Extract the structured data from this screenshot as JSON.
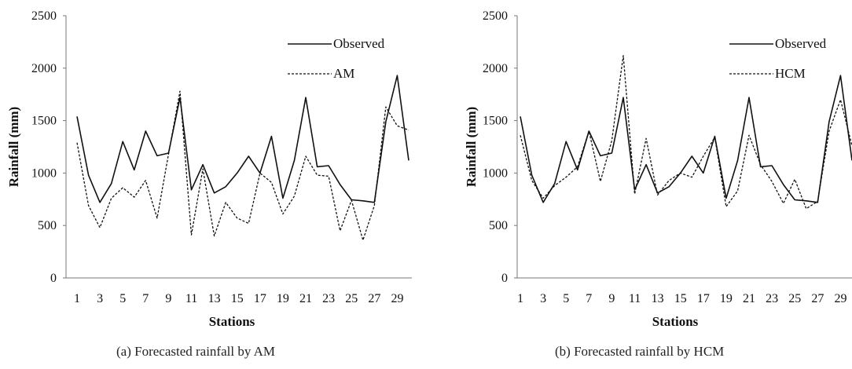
{
  "chart_data": [
    {
      "type": "line",
      "title": "",
      "caption": "(a) Forecasted rainfall by AM",
      "xlabel": "Stations",
      "ylabel": "Rainfall (mm)",
      "ylim": [
        0,
        2500
      ],
      "yticks": [
        0,
        500,
        1000,
        1500,
        2000,
        2500
      ],
      "xlim": [
        1,
        30
      ],
      "xticks": [
        1,
        3,
        5,
        7,
        9,
        11,
        13,
        15,
        17,
        19,
        21,
        23,
        25,
        27,
        29
      ],
      "grid": false,
      "legend": "top-right",
      "x": [
        1,
        2,
        3,
        4,
        5,
        6,
        7,
        8,
        9,
        10,
        11,
        12,
        13,
        14,
        15,
        16,
        17,
        18,
        19,
        20,
        21,
        22,
        23,
        24,
        25,
        26,
        27,
        28,
        29,
        30
      ],
      "series": [
        {
          "name": "Observed",
          "style": "solid",
          "values": [
            1540,
            980,
            720,
            900,
            1300,
            1030,
            1400,
            1165,
            1190,
            1720,
            840,
            1080,
            810,
            870,
            1000,
            1160,
            1000,
            1350,
            760,
            1120,
            1720,
            1060,
            1070,
            890,
            745,
            735,
            720,
            1490,
            1930,
            1120
          ]
        },
        {
          "name": "AM",
          "style": "dashed",
          "values": [
            1290,
            690,
            480,
            760,
            860,
            770,
            930,
            570,
            1180,
            1780,
            410,
            1040,
            400,
            720,
            570,
            520,
            1000,
            910,
            610,
            780,
            1160,
            980,
            970,
            450,
            740,
            360,
            690,
            1630,
            1450,
            1410
          ]
        }
      ]
    },
    {
      "type": "line",
      "title": "",
      "caption": "(b) Forecasted rainfall by HCM",
      "xlabel": "Stations",
      "ylabel": "Rainfall (mm)",
      "ylim": [
        0,
        2500
      ],
      "yticks": [
        0,
        500,
        1000,
        1500,
        2000,
        2500
      ],
      "xlim": [
        1,
        30
      ],
      "xticks": [
        1,
        3,
        5,
        7,
        9,
        11,
        13,
        15,
        17,
        19,
        21,
        23,
        25,
        27,
        29
      ],
      "grid": false,
      "legend": "top-right",
      "x": [
        1,
        2,
        3,
        4,
        5,
        6,
        7,
        8,
        9,
        10,
        11,
        12,
        13,
        14,
        15,
        16,
        17,
        18,
        19,
        20,
        21,
        22,
        23,
        24,
        25,
        26,
        27,
        28,
        29,
        30
      ],
      "series": [
        {
          "name": "Observed",
          "style": "solid",
          "values": [
            1540,
            980,
            720,
            900,
            1300,
            1030,
            1400,
            1165,
            1190,
            1720,
            840,
            1080,
            810,
            870,
            1000,
            1160,
            1000,
            1350,
            760,
            1120,
            1720,
            1060,
            1070,
            890,
            745,
            735,
            720,
            1490,
            1930,
            1120
          ]
        },
        {
          "name": "HCM",
          "style": "dashed",
          "values": [
            1360,
            930,
            760,
            880,
            960,
            1060,
            1400,
            920,
            1310,
            2120,
            800,
            1330,
            790,
            930,
            1000,
            960,
            1160,
            1340,
            680,
            830,
            1360,
            1080,
            920,
            710,
            940,
            660,
            730,
            1400,
            1700,
            1260
          ]
        }
      ]
    }
  ]
}
